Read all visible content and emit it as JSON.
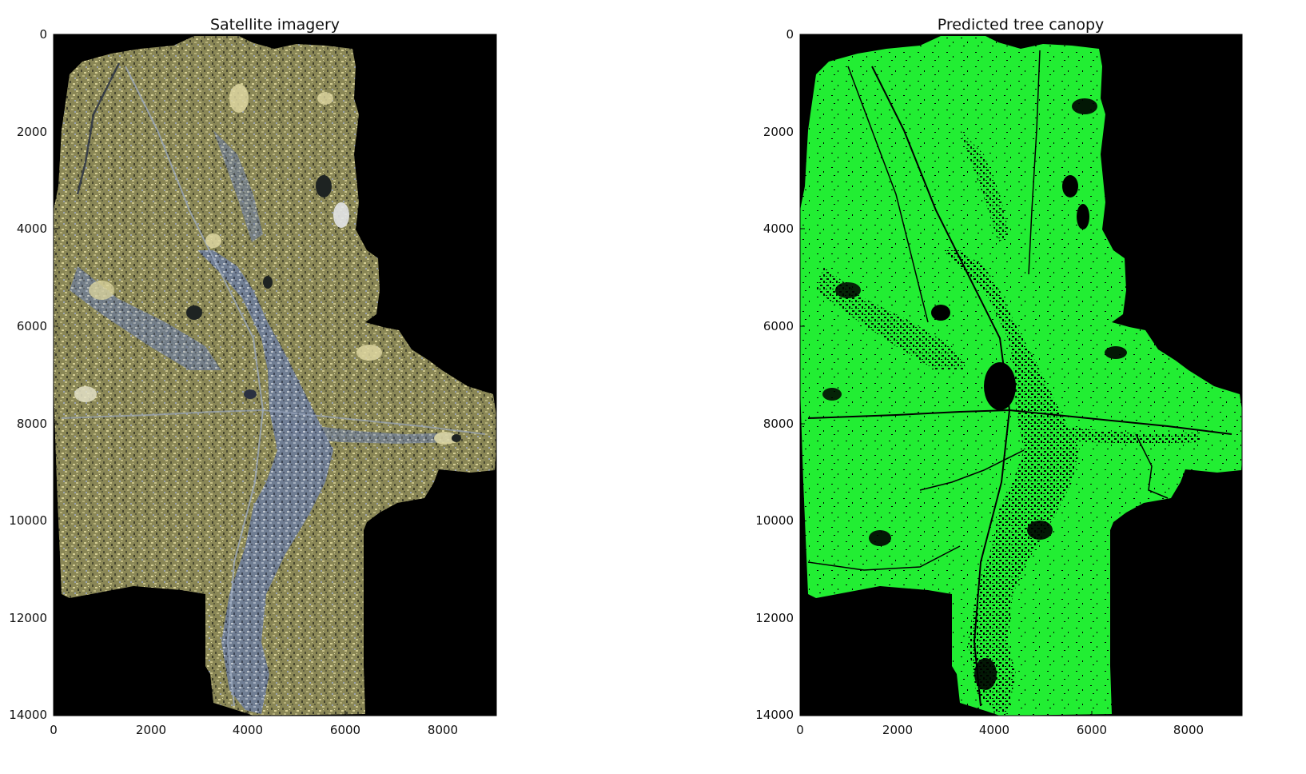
{
  "panels": [
    {
      "title": "Satellite imagery",
      "image": "satellite-imagery",
      "x_ticks": [
        "0",
        "2000",
        "4000",
        "6000",
        "8000"
      ],
      "y_ticks": [
        "0",
        "2000",
        "4000",
        "6000",
        "8000",
        "10000",
        "12000",
        "14000"
      ]
    },
    {
      "title": "Predicted tree canopy",
      "image": "predicted-tree-canopy",
      "x_ticks": [
        "0",
        "2000",
        "4000",
        "6000",
        "8000"
      ],
      "y_ticks": [
        "0",
        "2000",
        "4000",
        "6000",
        "8000",
        "10000",
        "12000",
        "14000"
      ]
    }
  ],
  "colors": {
    "background": "#000000",
    "canopy": "#22ee33",
    "imagery_vegetation": "#8c8a5a",
    "imagery_urban": "#7d8aa0"
  }
}
